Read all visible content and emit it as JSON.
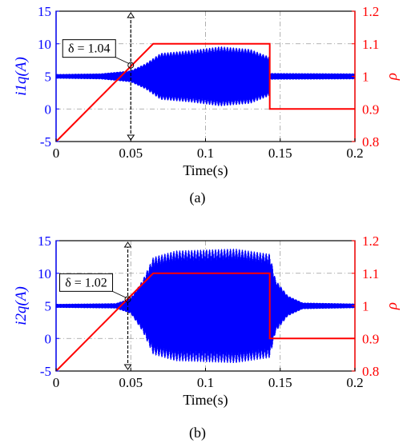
{
  "colors": {
    "left_axis": "#0000ff",
    "right_axis": "#ff0000",
    "signal": "#0000ff",
    "rho": "#ff0000",
    "grid": "#9a9a9a"
  },
  "chart_data": [
    {
      "type": "line",
      "caption": "(a)",
      "xlabel": "Time(s)",
      "ylabel_left": "i1q(A)",
      "ylabel_right": "ρ",
      "xlim": [
        0,
        0.2
      ],
      "ylim_left": [
        -5,
        15
      ],
      "ylim_right": [
        0.8,
        1.2
      ],
      "xticks": [
        "0",
        "0.05",
        "0.1",
        "0.15",
        "0.2"
      ],
      "yticks_left": [
        "-5",
        "0",
        "5",
        "10",
        "15"
      ],
      "yticks_right": [
        "0.8",
        "0.9",
        "1",
        "1.1",
        "1.2"
      ],
      "grid": true,
      "annotation": {
        "text": "δ = 1.04",
        "x": 0.05,
        "y_right": 1.034
      },
      "marker_x": 0.05,
      "series": [
        {
          "axis": "right",
          "x": [
            0,
            0.065,
            0.143,
            0.143,
            0.2
          ],
          "y": [
            0.8,
            1.1,
            1.1,
            0.9,
            0.9
          ]
        },
        {
          "axis": "left",
          "mean": 5,
          "envelope": {
            "x": [
              0,
              0.03,
              0.05,
              0.06,
              0.07,
              0.09,
              0.11,
              0.13,
              0.143,
              0.143,
              0.2
            ],
            "y": [
              0.35,
              0.45,
              0.9,
              2.0,
              3.6,
              4.0,
              4.6,
              4.2,
              3.0,
              0.5,
              0.45
            ]
          }
        }
      ]
    },
    {
      "type": "line",
      "caption": "(b)",
      "xlabel": "Time(s)",
      "ylabel_left": "i2q(A)",
      "ylabel_right": "ρ",
      "xlim": [
        0,
        0.2
      ],
      "ylim_left": [
        -5,
        15
      ],
      "ylim_right": [
        0.8,
        1.2
      ],
      "xticks": [
        "0",
        "0.05",
        "0.1",
        "0.15",
        "0.2"
      ],
      "yticks_left": [
        "-5",
        "0",
        "5",
        "10",
        "15"
      ],
      "yticks_right": [
        "0.8",
        "0.9",
        "1",
        "1.1",
        "1.2"
      ],
      "grid": true,
      "annotation": {
        "text": "δ = 1.02",
        "x": 0.048,
        "y_right": 1.02
      },
      "marker_x": 0.048,
      "series": [
        {
          "axis": "right",
          "x": [
            0,
            0.065,
            0.143,
            0.143,
            0.2
          ],
          "y": [
            0.8,
            1.1,
            1.1,
            0.9,
            0.9
          ]
        },
        {
          "axis": "left",
          "mean": 5,
          "envelope": {
            "x": [
              0,
              0.04,
              0.05,
              0.058,
              0.065,
              0.08,
              0.12,
              0.143,
              0.147,
              0.155,
              0.165,
              0.2
            ],
            "y": [
              0.3,
              0.4,
              1.2,
              4.0,
              7.5,
              8.5,
              8.8,
              8.0,
              4.0,
              1.6,
              0.5,
              0.35
            ]
          }
        }
      ]
    }
  ]
}
